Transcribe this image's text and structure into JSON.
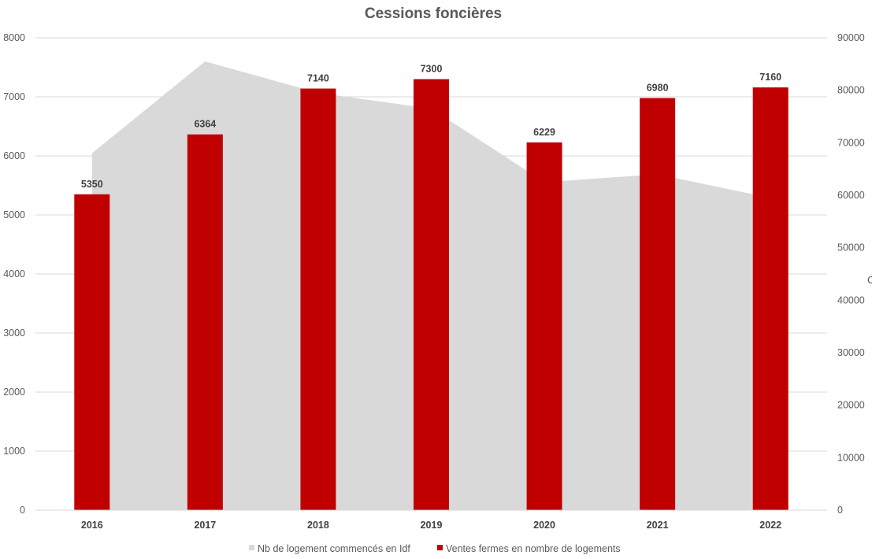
{
  "chart_data": {
    "type": "bar",
    "title": "Cessions foncières",
    "categories": [
      "2016",
      "2017",
      "2018",
      "2019",
      "2020",
      "2021",
      "2022"
    ],
    "series": [
      {
        "name": "Nb de logement commencés en Idf",
        "chart_type": "area",
        "axis": "right",
        "color": "#d9d9d9",
        "values": [
          68000,
          85500,
          79500,
          76500,
          62500,
          64000,
          59500
        ]
      },
      {
        "name": "Ventes fermes en nombre de logements",
        "chart_type": "bar",
        "axis": "left",
        "color": "#c00000",
        "values": [
          5350,
          6364,
          7140,
          7300,
          6229,
          6980,
          7160
        ],
        "data_labels": [
          "5350",
          "6364",
          "7140",
          "7300",
          "6229",
          "6980",
          "7160"
        ]
      }
    ],
    "left_axis": {
      "ylim": [
        0,
        8000
      ],
      "ticks": [
        "0",
        "1000",
        "2000",
        "3000",
        "4000",
        "5000",
        "6000",
        "7000",
        "8000"
      ]
    },
    "right_axis": {
      "ylim": [
        0,
        90000
      ],
      "ticks": [
        "0",
        "10000",
        "20000",
        "30000",
        "40000",
        "50000",
        "60000",
        "70000",
        "80000",
        "90000"
      ],
      "clipped_label_fragment": "C"
    },
    "xlabel": "",
    "ylabel": "",
    "grid": true,
    "legend_position": "bottom"
  }
}
